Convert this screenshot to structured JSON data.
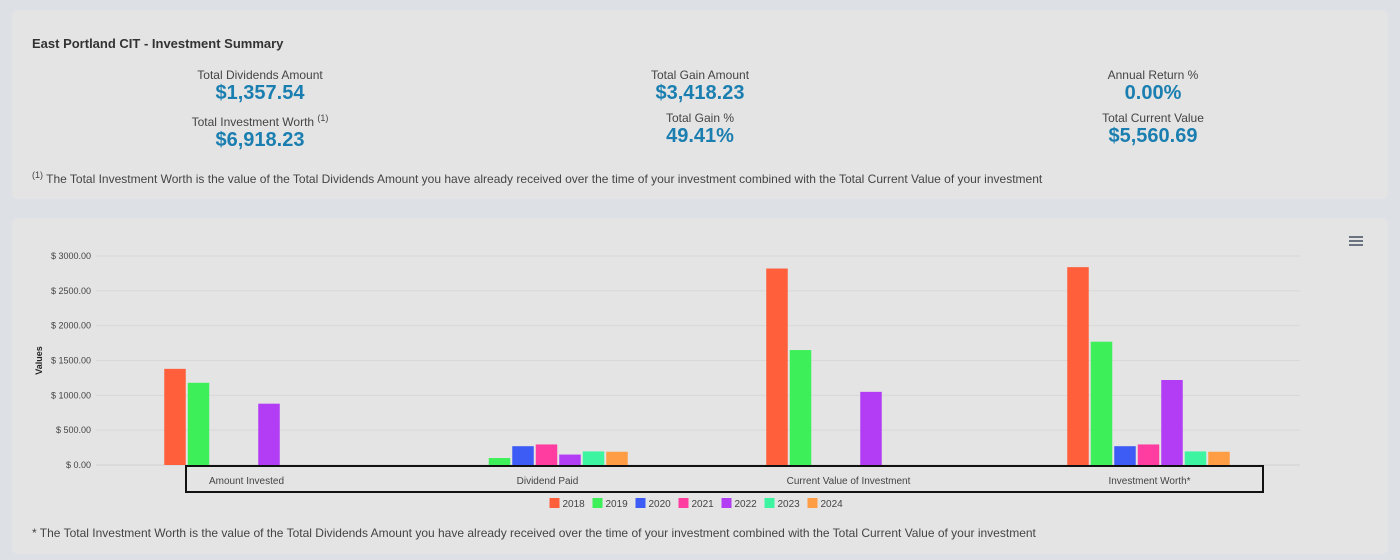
{
  "summary": {
    "title": "East Portland CIT - Investment Summary",
    "total_dividends_label": "Total Dividends Amount",
    "total_dividends_value": "$1,357.54",
    "total_investment_worth_label": "Total Investment Worth",
    "total_investment_worth_marker": "(1)",
    "total_investment_worth_value": "$6,918.23",
    "total_gain_amount_label": "Total Gain Amount",
    "total_gain_amount_value": "$3,418.23",
    "total_gain_pct_label": "Total Gain %",
    "total_gain_pct_value": "49.41%",
    "annual_return_label": "Annual Return %",
    "annual_return_value": "0.00%",
    "total_current_value_label": "Total Current Value",
    "total_current_value_value": "$5,560.69",
    "footnote_marker": "(1)",
    "footnote_text": "The Total Investment Worth is the value of the Total Dividends Amount you have already received over the time of your investment combined with the Total Current Value of your investment"
  },
  "chart_footnote": "* The Total Investment Worth is the value of the Total Dividends Amount you have already received over the time of your investment combined with the Total Current Value of your investment",
  "menu_icon": "hamburger-menu-icon",
  "chart_data": {
    "type": "bar",
    "ylabel": "Values",
    "xlabel": "",
    "ylim": [
      0,
      3000
    ],
    "yticks": [
      0,
      500,
      1000,
      1500,
      2000,
      2500,
      3000
    ],
    "ytick_labels": [
      "$ 0.00",
      "$ 500.00",
      "$ 1000.00",
      "$ 1500.00",
      "$ 2000.00",
      "$ 2500.00",
      "$ 3000.00"
    ],
    "grid": true,
    "legend_position": "bottom",
    "categories": [
      "Amount Invested",
      "Dividend Paid",
      "Current Value of Investment",
      "Investment Worth*"
    ],
    "series": [
      {
        "name": "2018",
        "color": "#ff5f3b",
        "values": [
          1380,
          0,
          2820,
          2840
        ]
      },
      {
        "name": "2019",
        "color": "#3df05a",
        "values": [
          1180,
          100,
          1650,
          1770
        ]
      },
      {
        "name": "2020",
        "color": "#3d5cf5",
        "values": [
          0,
          270,
          0,
          270
        ]
      },
      {
        "name": "2021",
        "color": "#ff3da0",
        "values": [
          0,
          295,
          0,
          295
        ]
      },
      {
        "name": "2022",
        "color": "#b23df5",
        "values": [
          880,
          150,
          1050,
          1220
        ]
      },
      {
        "name": "2023",
        "color": "#3df5a0",
        "values": [
          0,
          195,
          0,
          195
        ]
      },
      {
        "name": "2024",
        "color": "#ff9d45",
        "values": [
          0,
          190,
          0,
          190
        ]
      }
    ]
  }
}
